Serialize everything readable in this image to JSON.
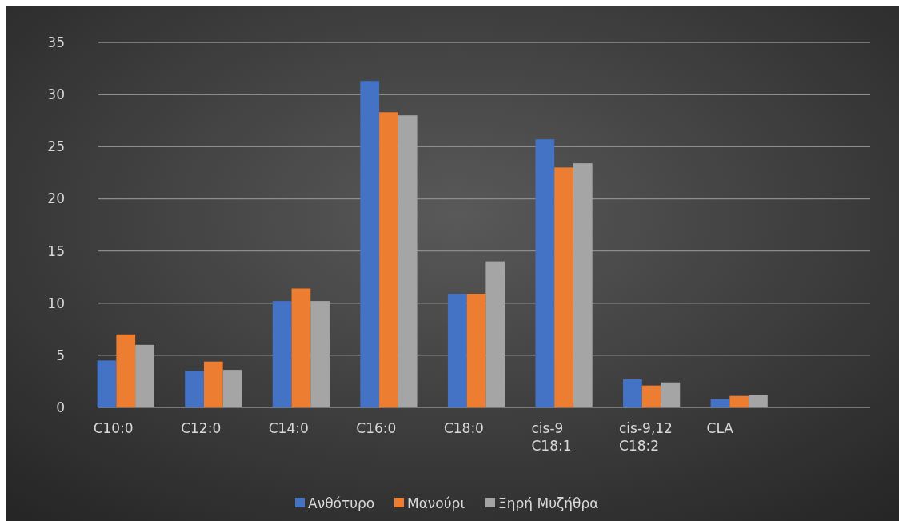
{
  "chart_data": {
    "type": "bar",
    "categories": [
      "C10:0",
      "C12:0",
      "C14:0",
      "C16:0",
      "C18:0",
      "cis-9 C18:1",
      "cis-9,12 C18:2",
      "CLA",
      null
    ],
    "series": [
      {
        "name": "Ανθότυρο",
        "color": "#4472c4",
        "values": [
          4.5,
          3.5,
          10.2,
          31.3,
          10.9,
          25.7,
          2.7,
          0.8,
          null
        ]
      },
      {
        "name": "Μανούρι",
        "color": "#ed7d31",
        "values": [
          7,
          4.4,
          11.4,
          28.3,
          10.9,
          23,
          2.1,
          1.1,
          null
        ]
      },
      {
        "name": "Ξηρή Μυζήθρα",
        "color": "#a5a5a5",
        "values": [
          6,
          3.6,
          10.2,
          28,
          14,
          23.4,
          2.4,
          1.2,
          null
        ]
      }
    ],
    "ylim": [
      0,
      35
    ],
    "yticks": [
      0,
      5,
      10,
      15,
      20,
      25,
      30,
      35
    ],
    "grid": "y",
    "legend": "bottom"
  }
}
